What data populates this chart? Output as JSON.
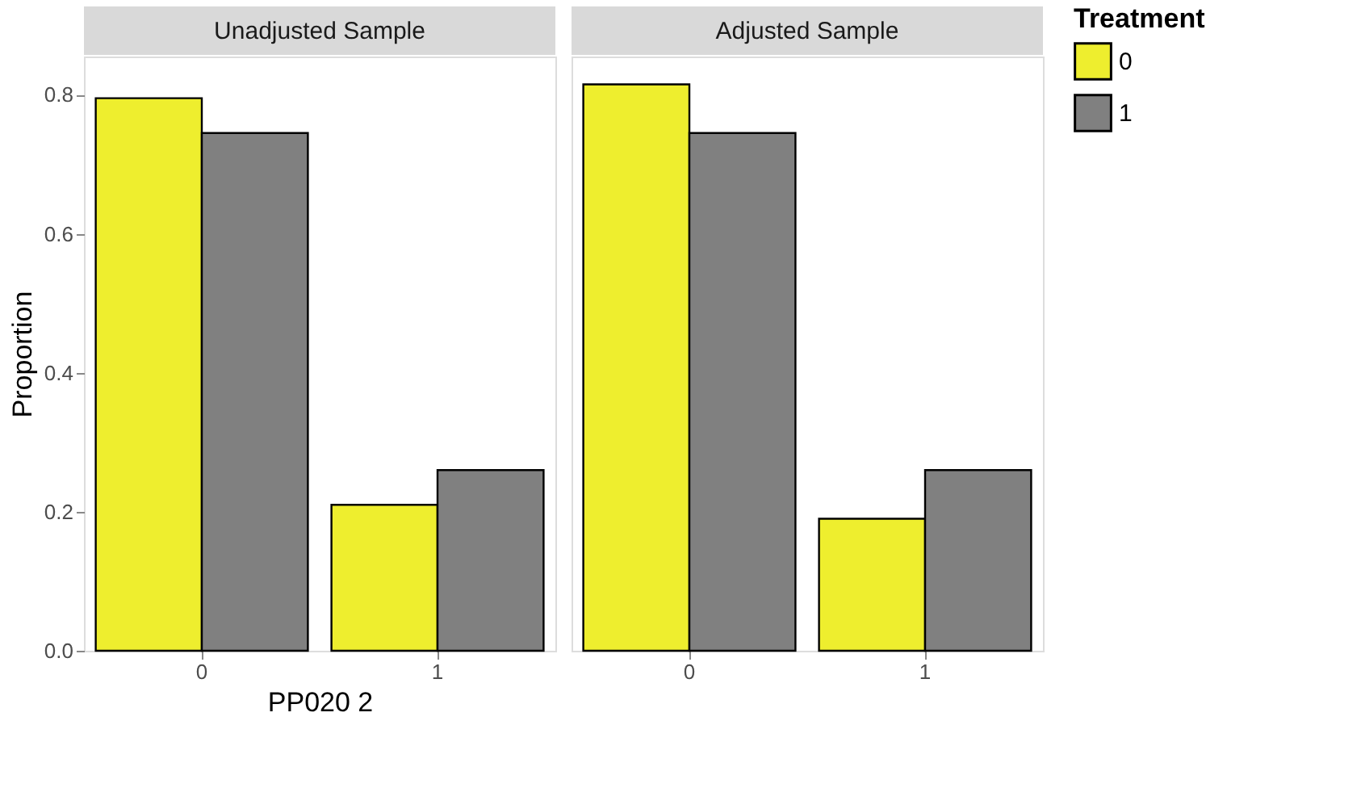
{
  "chart_data": [
    {
      "type": "bar",
      "title": "Unadjusted Sample",
      "xlabel": "PP020 2",
      "ylabel": "Proportion",
      "categories": [
        "0",
        "1"
      ],
      "series": [
        {
          "name": "0",
          "color": "#eeee2e",
          "values": [
            0.795,
            0.21
          ]
        },
        {
          "name": "1",
          "color": "#808080",
          "values": [
            0.745,
            0.26
          ]
        }
      ],
      "ylim": [
        0,
        0.855
      ],
      "yticks": [
        {
          "value": 0,
          "label": "0.0"
        },
        {
          "value": 0.2,
          "label": "0.2"
        },
        {
          "value": 0.4,
          "label": "0.4"
        },
        {
          "value": 0.6,
          "label": "0.6"
        },
        {
          "value": 0.8,
          "label": "0.8"
        }
      ],
      "grid": false,
      "legend": "right"
    },
    {
      "type": "bar",
      "title": "Adjusted Sample",
      "legend_title": "Treatment",
      "categories": [
        "0",
        "1"
      ],
      "series": [
        {
          "name": "0",
          "color": "#eeee2e",
          "values": [
            0.815,
            0.19
          ]
        },
        {
          "name": "1",
          "color": "#808080",
          "values": [
            0.745,
            0.26
          ]
        }
      ],
      "ylim": [
        0,
        0.855
      ],
      "grid": false,
      "legend": "right",
      "tick_labels": "x"
    }
  ]
}
